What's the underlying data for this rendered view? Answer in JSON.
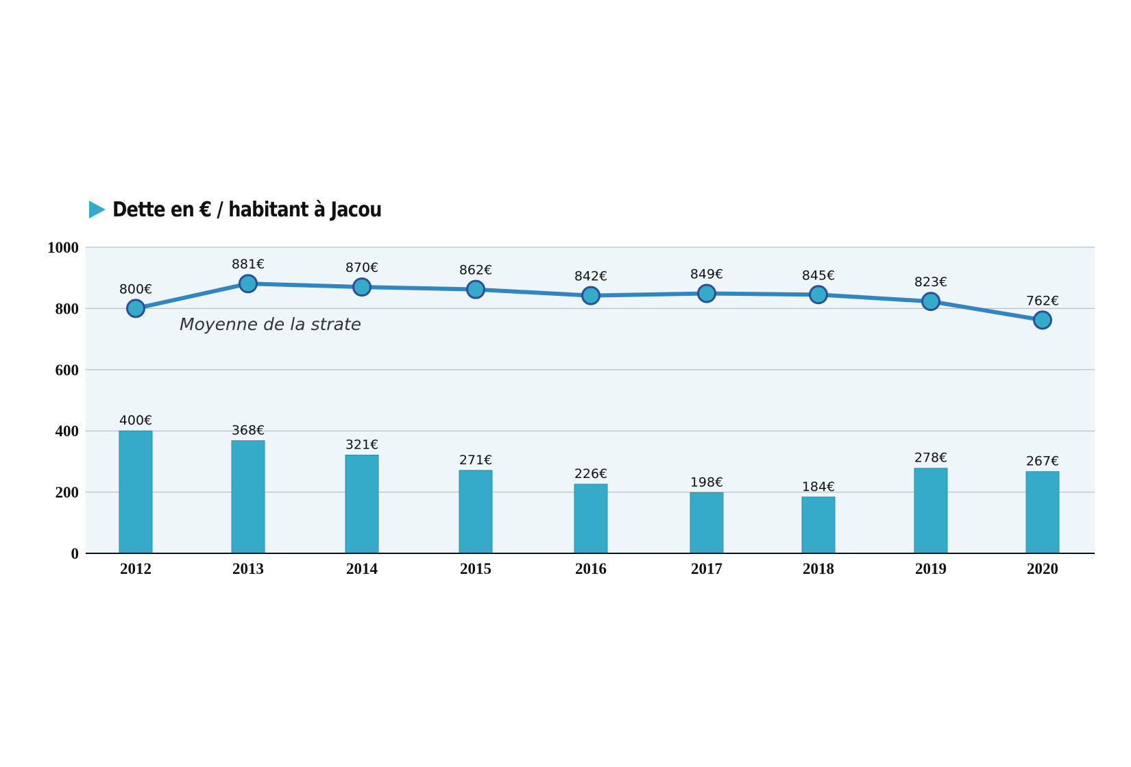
{
  "colors": {
    "bar": "#36abc9",
    "bar_stroke": "#2a8fab",
    "line": "#3185c0",
    "marker_fill": "#36abc9",
    "marker_stroke": "#2a4f9a",
    "plot_bg": "#eff6f9",
    "grid": "#a9b3b9",
    "title_marker": "#36a9cb"
  },
  "chart_data": {
    "type": "bar",
    "title": "Dette en € / habitant à Jacou",
    "categories": [
      "2012",
      "2013",
      "2014",
      "2015",
      "2016",
      "2017",
      "2018",
      "2019",
      "2020"
    ],
    "ylim": [
      0,
      1000
    ],
    "yticks": [
      "0",
      "200",
      "400",
      "600",
      "800",
      "1000"
    ],
    "grid": true,
    "bars": {
      "values": [
        400,
        368,
        321,
        271,
        226,
        198,
        184,
        278,
        267
      ],
      "labels": [
        "400€",
        "368€",
        "321€",
        "271€",
        "226€",
        "198€",
        "184€",
        "278€",
        "267€"
      ]
    },
    "line": {
      "name": "Moyenne de la strate",
      "values": [
        800,
        881,
        870,
        862,
        842,
        849,
        845,
        823,
        762
      ],
      "labels": [
        "800€",
        "881€",
        "870€",
        "862€",
        "842€",
        "849€",
        "845€",
        "823€",
        "762€"
      ]
    }
  }
}
